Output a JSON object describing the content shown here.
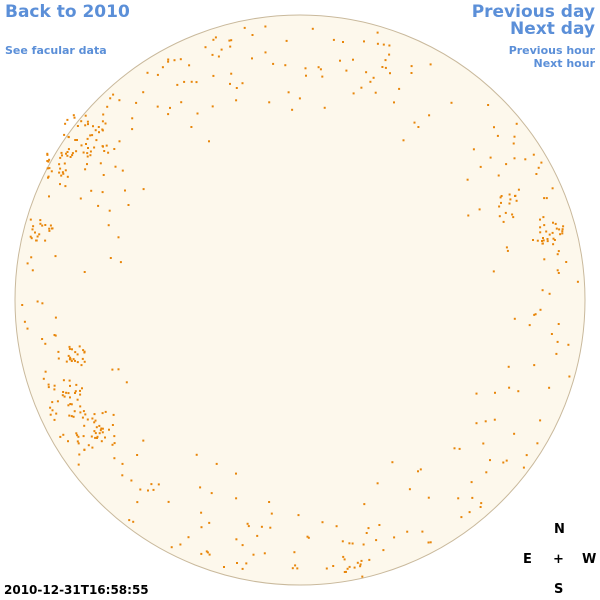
{
  "nav": {
    "back": "Back to 2010",
    "facular": "See facular data",
    "previous_day": "Previous day",
    "next_day": "Next day",
    "previous_hour": "Previous hour",
    "next_hour": "Next hour"
  },
  "compass": {
    "north": "N",
    "east": "E",
    "center": "+",
    "west": "W",
    "south": "S"
  },
  "timestamp": "2010-12-31T16:58:55",
  "colors": {
    "disk_fill": "#fdf8ec",
    "disk_stroke": "#c9b99c",
    "feature": "#e8860a",
    "link": "#5b8fd8"
  }
}
